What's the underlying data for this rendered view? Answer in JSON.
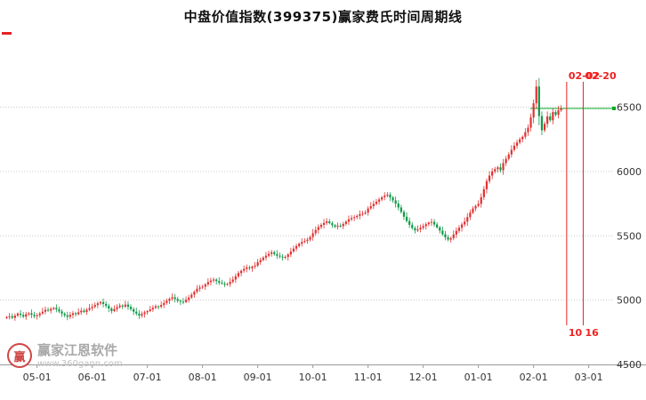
{
  "title": "中盘价值指数(399375)赢家费氏时间周期线",
  "watermark": {
    "brand": "赢家江恩软件",
    "url": "www.360gann.com",
    "logo_char": "赢"
  },
  "chart_data": {
    "type": "candlestick",
    "title": "中盘价值指数(399375)赢家费氏时间周期线",
    "x_ticks": [
      "05-01",
      "06-01",
      "07-01",
      "08-01",
      "09-01",
      "10-01",
      "11-01",
      "12-01",
      "01-01",
      "02-01",
      "03-01"
    ],
    "y_ticks": [
      6500,
      6000,
      5500,
      5000,
      4500
    ],
    "ylim": [
      4500,
      7020
    ],
    "grid": "dotted-horizontal",
    "legend": "none",
    "colors": {
      "up": "#e03232",
      "down": "#0f9948",
      "cycle_line": "#ee2222",
      "level_line": "#00aa22",
      "grid": "#cccccc",
      "axis": "#999999",
      "label": "#333333"
    },
    "first_open": 4860,
    "closes": [
      4868,
      4875,
      4862,
      4880,
      4895,
      4885,
      4872,
      4890,
      4898,
      4886,
      4875,
      4882,
      4896,
      4910,
      4925,
      4918,
      4932,
      4940,
      4928,
      4912,
      4895,
      4882,
      4870,
      4885,
      4898,
      4890,
      4905,
      4918,
      4908,
      4925,
      4938,
      4948,
      4962,
      4975,
      4985,
      4970,
      4955,
      4935,
      4915,
      4930,
      4945,
      4958,
      4950,
      4965,
      4948,
      4930,
      4910,
      4895,
      4880,
      4892,
      4905,
      4915,
      4928,
      4940,
      4952,
      4948,
      4962,
      4978,
      4995,
      5010,
      5022,
      5008,
      4995,
      4988,
      4985,
      5002,
      5020,
      5042,
      5065,
      5088,
      5098,
      5105,
      5122,
      5140,
      5152,
      5160,
      5148,
      5135,
      5128,
      5120,
      5125,
      5142,
      5160,
      5185,
      5210,
      5228,
      5242,
      5255,
      5248,
      5260,
      5268,
      5295,
      5312,
      5330,
      5345,
      5360,
      5372,
      5358,
      5345,
      5338,
      5332,
      5336,
      5355,
      5378,
      5400,
      5420,
      5438,
      5452,
      5460,
      5470,
      5490,
      5520,
      5545,
      5568,
      5585,
      5600,
      5612,
      5598,
      5582,
      5570,
      5578,
      5575,
      5592,
      5610,
      5628,
      5638,
      5645,
      5655,
      5668,
      5672,
      5680,
      5712,
      5730,
      5748,
      5765,
      5782,
      5800,
      5812,
      5820,
      5798,
      5775,
      5750,
      5720,
      5685,
      5648,
      5615,
      5585,
      5560,
      5542,
      5550,
      5562,
      5575,
      5590,
      5602,
      5608,
      5588,
      5565,
      5540,
      5512,
      5488,
      5470,
      5482,
      5510,
      5538,
      5562,
      5588,
      5610,
      5645,
      5680,
      5712,
      5732,
      5748,
      5800,
      5862,
      5925,
      5968,
      6000,
      6018,
      6032,
      6010,
      6065,
      6098,
      6132,
      6168,
      6200,
      6225,
      6250,
      6270,
      6305,
      6340,
      6420,
      6530,
      6660,
      6430,
      6320,
      6370,
      6428,
      6398,
      6462,
      6440,
      6475,
      6490
    ],
    "x_tick_first_slot": 11,
    "x_tick_step": 20,
    "total_slots": 220,
    "time_cycle_lines": [
      {
        "date_label": "02-02",
        "count_label": "10",
        "slot": 203
      },
      {
        "date_label": "02-20",
        "count_label": "16",
        "slot": 209
      }
    ],
    "level_line": {
      "value": 6490
    }
  }
}
